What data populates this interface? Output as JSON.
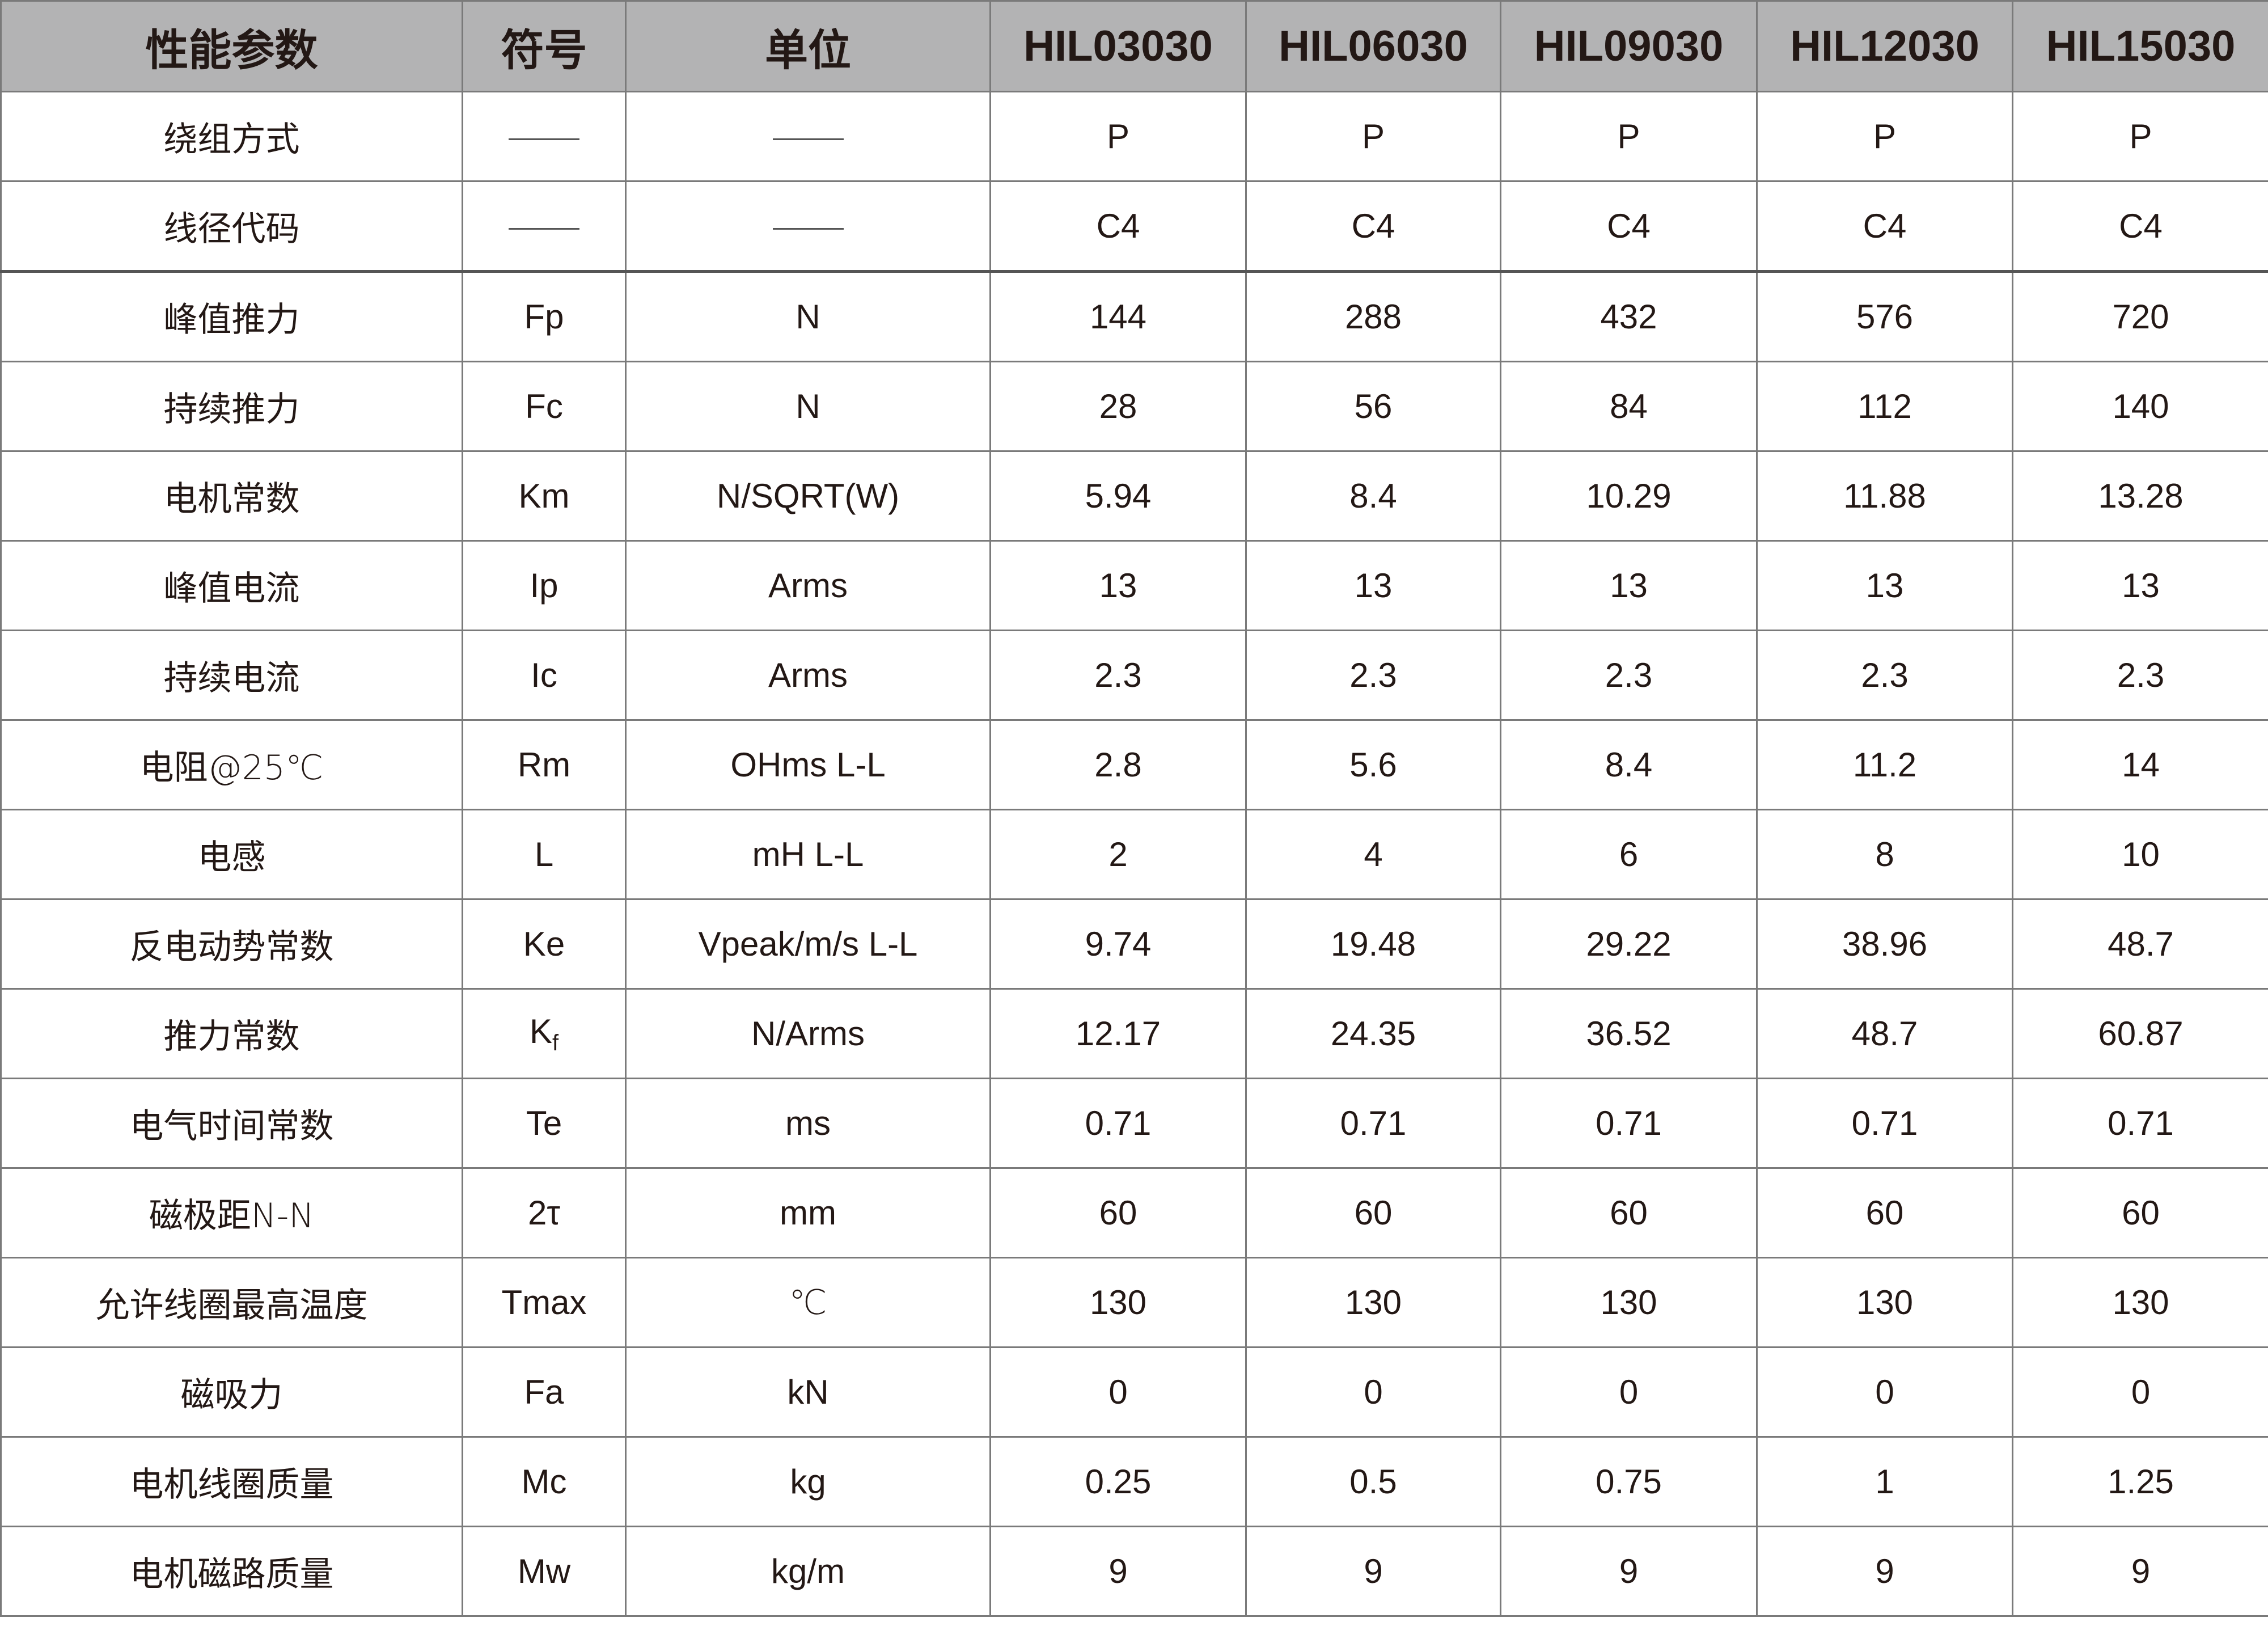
{
  "table": {
    "headers": [
      "性能参数",
      "符号",
      "单位",
      "HIL03030",
      "HIL06030",
      "HIL09030",
      "HIL12030",
      "HIL15030"
    ],
    "rows": [
      {
        "param": "绕组方式",
        "sym": "—",
        "sym_sub": "",
        "unit": "—",
        "values": [
          "P",
          "P",
          "P",
          "P",
          "P"
        ]
      },
      {
        "param": "线径代码",
        "sym": "—",
        "sym_sub": "",
        "unit": "—",
        "values": [
          "C4",
          "C4",
          "C4",
          "C4",
          "C4"
        ]
      },
      {
        "param": "峰值推力",
        "sym": "Fp",
        "sym_sub": "",
        "unit": "N",
        "values": [
          "144",
          "288",
          "432",
          "576",
          "720"
        ]
      },
      {
        "param": "持续推力",
        "sym": "Fc",
        "sym_sub": "",
        "unit": "N",
        "values": [
          "28",
          "56",
          "84",
          "112",
          "140"
        ]
      },
      {
        "param": "电机常数",
        "sym": "Km",
        "sym_sub": "",
        "unit": "N/SQRT(W)",
        "values": [
          "5.94",
          "8.4",
          "10.29",
          "11.88",
          "13.28"
        ]
      },
      {
        "param": "峰值电流",
        "sym": "Ip",
        "sym_sub": "",
        "unit": "Arms",
        "values": [
          "13",
          "13",
          "13",
          "13",
          "13"
        ]
      },
      {
        "param": "持续电流",
        "sym": "Ic",
        "sym_sub": "",
        "unit": "Arms",
        "values": [
          "2.3",
          "2.3",
          "2.3",
          "2.3",
          "2.3"
        ]
      },
      {
        "param": "电阻@25℃",
        "sym": "Rm",
        "sym_sub": "",
        "unit": "OHms L-L",
        "values": [
          "2.8",
          "5.6",
          "8.4",
          "11.2",
          "14"
        ]
      },
      {
        "param": "电感",
        "sym": "L",
        "sym_sub": "",
        "unit": "mH L-L",
        "values": [
          "2",
          "4",
          "6",
          "8",
          "10"
        ]
      },
      {
        "param": "反电动势常数",
        "sym": "Ke",
        "sym_sub": "",
        "unit": "Vpeak/m/s L-L",
        "values": [
          "9.74",
          "19.48",
          "29.22",
          "38.96",
          "48.7"
        ]
      },
      {
        "param": "推力常数",
        "sym": "K",
        "sym_sub": "f",
        "unit": "N/Arms",
        "values": [
          "12.17",
          "24.35",
          "36.52",
          "48.7",
          "60.87"
        ]
      },
      {
        "param": "电气时间常数",
        "sym": "Te",
        "sym_sub": "",
        "unit": "ms",
        "values": [
          "0.71",
          "0.71",
          "0.71",
          "0.71",
          "0.71"
        ]
      },
      {
        "param": "磁极距N-N",
        "sym": "2τ",
        "sym_sub": "",
        "unit": "mm",
        "values": [
          "60",
          "60",
          "60",
          "60",
          "60"
        ]
      },
      {
        "param": "允许线圈最高温度",
        "sym": "Tmax",
        "sym_sub": "",
        "unit": "℃",
        "values": [
          "130",
          "130",
          "130",
          "130",
          "130"
        ]
      },
      {
        "param": "磁吸力",
        "sym": "Fa",
        "sym_sub": "",
        "unit": "kN",
        "values": [
          "0",
          "0",
          "0",
          "0",
          "0"
        ]
      },
      {
        "param": "电机线圈质量",
        "sym": "Mc",
        "sym_sub": "",
        "unit": "kg",
        "values": [
          "0.25",
          "0.5",
          "0.75",
          "1",
          "1.25"
        ]
      },
      {
        "param": "电机磁路质量",
        "sym": "Mw",
        "sym_sub": "",
        "unit": "kg/m",
        "values": [
          "9",
          "9",
          "9",
          "9",
          "9"
        ]
      }
    ]
  },
  "colors": {
    "header_bg": "#b3b3b4",
    "text": "#231815",
    "border": "#7a7a7a"
  }
}
